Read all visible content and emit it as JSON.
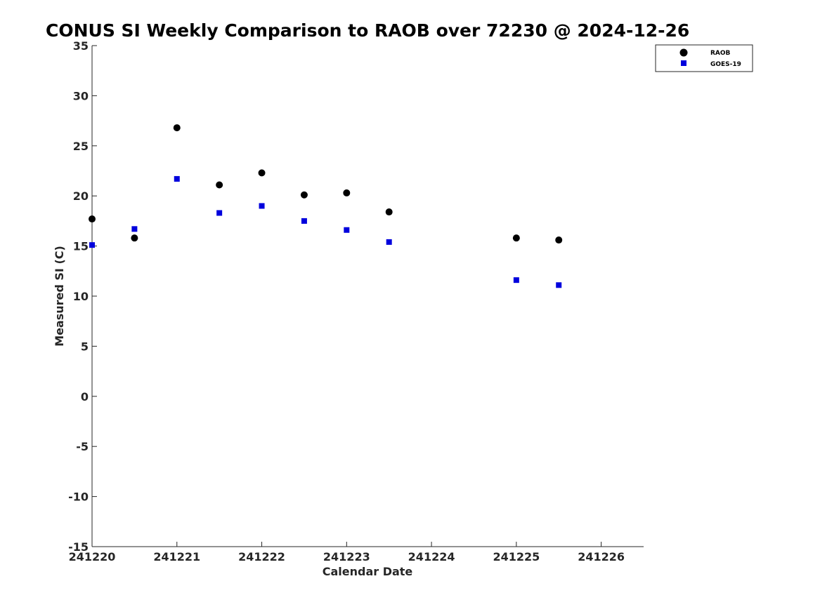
{
  "chart_data": {
    "type": "scatter",
    "title": "CONUS SI Weekly Comparison to RAOB over 72230 @ 2024-12-26",
    "xlabel": "Calendar Date",
    "ylabel": "Measured SI (C)",
    "xlim": [
      241220,
      241226.5
    ],
    "ylim": [
      -15,
      35
    ],
    "xticks": [
      241220,
      241221,
      241222,
      241223,
      241224,
      241225,
      241226
    ],
    "xtick_labels": [
      "241220",
      "241221",
      "241222",
      "241223",
      "241224",
      "241225",
      "241226"
    ],
    "yticks": [
      -15,
      -10,
      -5,
      0,
      5,
      10,
      15,
      20,
      25,
      30,
      35
    ],
    "ytick_labels": [
      "-15",
      "-10",
      "-5",
      "0",
      "5",
      "10",
      "15",
      "20",
      "25",
      "30",
      "35"
    ],
    "grid": false,
    "legend_position": "top-right",
    "series": [
      {
        "name": "RAOB",
        "marker": "circle",
        "color": "#000000",
        "x": [
          241220,
          241220.5,
          241221,
          241221.5,
          241222,
          241222.5,
          241223,
          241223.5,
          241225,
          241225.5
        ],
        "y": [
          17.7,
          15.8,
          26.8,
          21.1,
          22.3,
          20.1,
          20.3,
          18.4,
          15.8,
          15.6
        ]
      },
      {
        "name": "GOES-19",
        "marker": "square",
        "color": "#0000dd",
        "x": [
          241220,
          241220.5,
          241221,
          241221.5,
          241222,
          241222.5,
          241223,
          241223.5,
          241225,
          241225.5
        ],
        "y": [
          15.1,
          16.7,
          21.7,
          18.3,
          19.0,
          17.5,
          16.6,
          15.4,
          11.6,
          11.1
        ]
      }
    ]
  }
}
